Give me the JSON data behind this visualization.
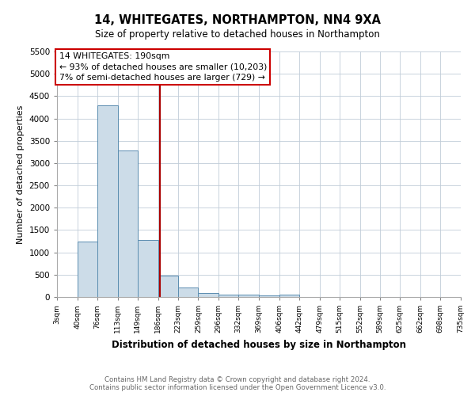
{
  "title": "14, WHITEGATES, NORTHAMPTON, NN4 9XA",
  "subtitle": "Size of property relative to detached houses in Northampton",
  "xlabel": "Distribution of detached houses by size in Northampton",
  "ylabel": "Number of detached properties",
  "bar_color": "#ccdce8",
  "bar_edge_color": "#5b8db0",
  "bin_edges": [
    3,
    40,
    76,
    113,
    149,
    186,
    223,
    259,
    296,
    332,
    369,
    406,
    442,
    479,
    515,
    552,
    589,
    625,
    662,
    698,
    735
  ],
  "bar_heights": [
    0,
    1250,
    4300,
    3280,
    1280,
    480,
    220,
    90,
    60,
    50,
    40,
    50,
    0,
    0,
    0,
    0,
    0,
    0,
    0,
    0
  ],
  "property_size": 190,
  "red_line_color": "#aa0000",
  "annotation_line1": "14 WHITEGATES: 190sqm",
  "annotation_line2": "← 93% of detached houses are smaller (10,203)",
  "annotation_line3": "7% of semi-detached houses are larger (729) →",
  "annotation_box_color": "#cc0000",
  "annotation_bg": "#ffffff",
  "ylim": [
    0,
    5500
  ],
  "yticks": [
    0,
    500,
    1000,
    1500,
    2000,
    2500,
    3000,
    3500,
    4000,
    4500,
    5000,
    5500
  ],
  "tick_labels": [
    "3sqm",
    "40sqm",
    "76sqm",
    "113sqm",
    "149sqm",
    "186sqm",
    "223sqm",
    "259sqm",
    "296sqm",
    "332sqm",
    "369sqm",
    "406sqm",
    "442sqm",
    "479sqm",
    "515sqm",
    "552sqm",
    "589sqm",
    "625sqm",
    "662sqm",
    "698sqm",
    "735sqm"
  ],
  "footer_line1": "Contains HM Land Registry data © Crown copyright and database right 2024.",
  "footer_line2": "Contains public sector information licensed under the Open Government Licence v3.0.",
  "bg_color": "#ffffff",
  "grid_color": "#c0ccd8"
}
